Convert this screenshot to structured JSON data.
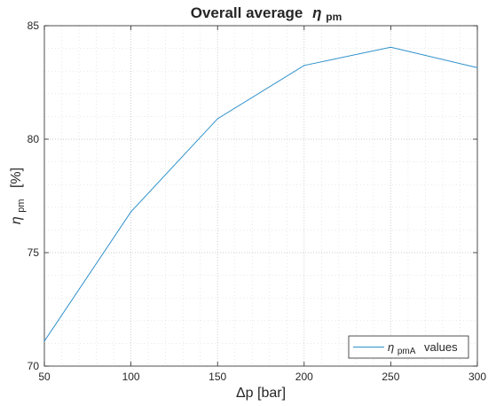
{
  "chart_data": {
    "type": "line",
    "title": "Overall average",
    "title_symbol": "η",
    "title_subscript": "pm",
    "xlabel": "Δp  [bar]",
    "ylabel_symbol": "η",
    "ylabel_subscript": "pm",
    "ylabel_unit": "[%]",
    "xlim": [
      50,
      300
    ],
    "ylim": [
      70,
      85
    ],
    "xticks": [
      50,
      100,
      150,
      200,
      250,
      300
    ],
    "yticks": [
      70,
      75,
      80,
      85
    ],
    "grid": "major and minor, dotted",
    "legend_position": "bottom-right",
    "series": [
      {
        "name_symbol": "η",
        "name_subscript": "pmA",
        "name_suffix": "values",
        "color": "#2c8fcb",
        "x": [
          50,
          100,
          150,
          200,
          250,
          300
        ],
        "y": [
          71.1,
          76.8,
          80.9,
          83.25,
          84.05,
          83.15
        ]
      }
    ]
  }
}
